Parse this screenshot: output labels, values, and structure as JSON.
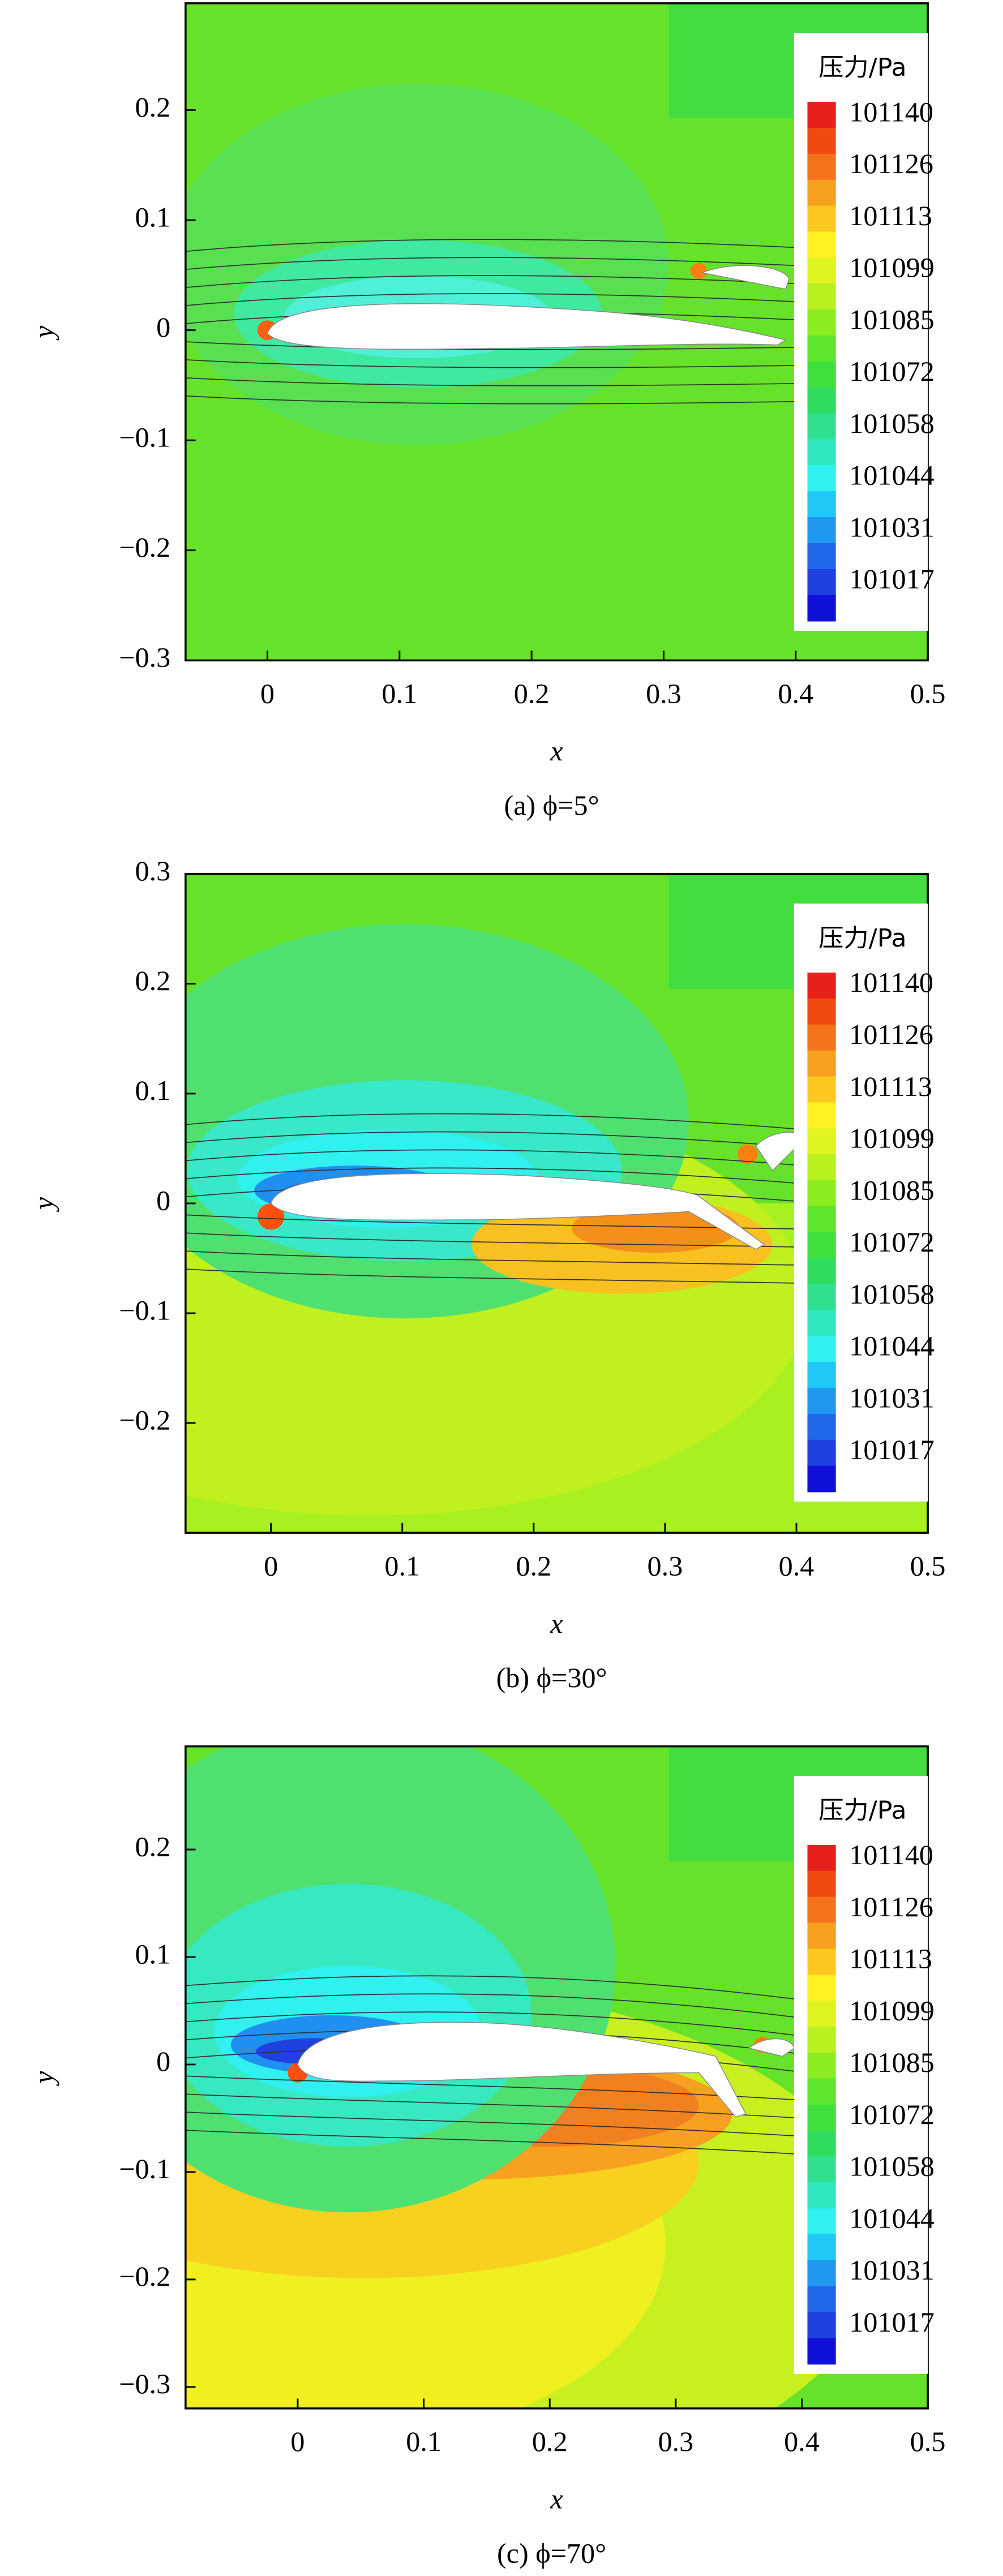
{
  "chart_data": [
    {
      "type": "contour",
      "caption": "(a) ϕ=5°",
      "x_label": "x",
      "y_label": "y",
      "xlim": [
        -0.062,
        0.5
      ],
      "ylim": [
        -0.3,
        0.297
      ],
      "xticks": [
        0,
        0.1,
        0.2,
        0.3,
        0.4,
        0.5
      ],
      "yticks": [
        {
          "value": -0.3,
          "label": "−0.3"
        },
        {
          "value": -0.2,
          "label": "−0.2"
        },
        {
          "value": -0.1,
          "label": "−0.1"
        },
        0,
        0.1,
        0.2
      ],
      "colorbar": {
        "title": "压力/Pa",
        "levels": [
          101140,
          101126,
          101113,
          101099,
          101085,
          101072,
          101058,
          101044,
          101031,
          101017
        ],
        "colors": [
          "#e8201c",
          "#f04a10",
          "#f4721a",
          "#f8a020",
          "#fcc820",
          "#fff020",
          "#e0f520",
          "#b8f020",
          "#8cec20",
          "#5ee62a",
          "#40e03c",
          "#30dc60",
          "#30e090",
          "#30e8c0",
          "#30f0f0",
          "#20c8f8",
          "#2098f0",
          "#2068e8",
          "#2040e0",
          "#1010d8"
        ]
      }
    },
    {
      "type": "contour",
      "caption": "(b) ϕ=30°",
      "x_label": "x",
      "y_label": "y",
      "xlim": [
        -0.065,
        0.5
      ],
      "ylim": [
        -0.3,
        0.3
      ],
      "xticks": [
        0,
        0.1,
        0.2,
        0.3,
        0.4,
        0.5
      ],
      "yticks": [
        {
          "value": -0.2,
          "label": "−0.2"
        },
        {
          "value": -0.1,
          "label": "−0.1"
        },
        0,
        0.1,
        0.2,
        0.3
      ],
      "colorbar": {
        "title": "压力/Pa",
        "levels": [
          101140,
          101126,
          101113,
          101099,
          101085,
          101072,
          101058,
          101044,
          101031,
          101017
        ],
        "colors": [
          "#e8201c",
          "#f04a10",
          "#f4721a",
          "#f8a020",
          "#fcc820",
          "#fff020",
          "#e0f520",
          "#b8f020",
          "#8cec20",
          "#5ee62a",
          "#40e03c",
          "#30dc60",
          "#30e090",
          "#30e8c0",
          "#30f0f0",
          "#20c8f8",
          "#2098f0",
          "#2068e8",
          "#2040e0",
          "#1010d8"
        ]
      }
    },
    {
      "type": "contour",
      "caption": "(c) ϕ=70°",
      "x_label": "x",
      "y_label": "y",
      "xlim": [
        -0.089,
        0.5
      ],
      "ylim": [
        -0.32,
        0.296
      ],
      "xticks": [
        0,
        0.1,
        0.2,
        0.3,
        0.4,
        0.5
      ],
      "yticks": [
        {
          "value": -0.3,
          "label": "−0.3"
        },
        {
          "value": -0.2,
          "label": "−0.2"
        },
        {
          "value": -0.1,
          "label": "−0.1"
        },
        0,
        0.1,
        0.2
      ],
      "colorbar": {
        "title": "压力/Pa",
        "levels": [
          101140,
          101126,
          101113,
          101099,
          101085,
          101072,
          101058,
          101044,
          101031,
          101017
        ],
        "colors": [
          "#e8201c",
          "#f04a10",
          "#f4721a",
          "#f8a020",
          "#fcc820",
          "#fff020",
          "#e0f520",
          "#b8f020",
          "#8cec20",
          "#5ee62a",
          "#40e03c",
          "#30dc60",
          "#30e090",
          "#30e8c0",
          "#30f0f0",
          "#20c8f8",
          "#2098f0",
          "#2068e8",
          "#2040e0",
          "#1010d8"
        ]
      }
    }
  ]
}
